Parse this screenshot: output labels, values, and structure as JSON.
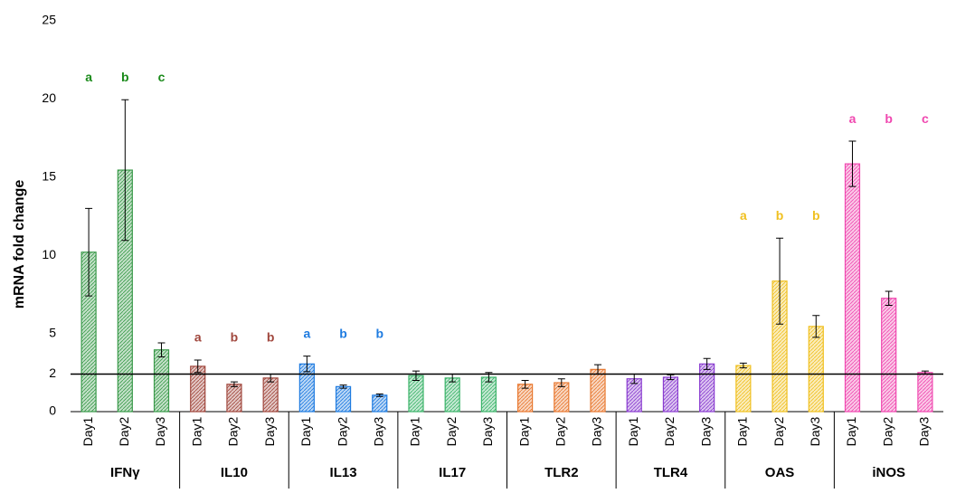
{
  "chart_data": {
    "type": "bar",
    "y_label": "mRNA fold change",
    "ylim": [
      0,
      25
    ],
    "yticks": [
      0,
      {
        "value": 2.4,
        "label": "2"
      },
      5,
      10,
      15,
      20,
      25
    ],
    "reference_line": 2.4,
    "series": [
      {
        "name": "IFNγ",
        "color": "#3a9a4a",
        "letter_color": "#1a8a1a",
        "categories": [
          "Day1",
          "Day2",
          "Day3"
        ],
        "values": [
          10.2,
          15.45,
          3.95
        ],
        "errors": [
          2.8,
          4.5,
          0.45
        ],
        "letters": [
          "a",
          "b",
          "c"
        ]
      },
      {
        "name": "IL10",
        "color": "#a0463c",
        "letter_color": "#a0463c",
        "categories": [
          "Day1",
          "Day2",
          "Day3"
        ],
        "values": [
          2.9,
          1.75,
          2.15
        ],
        "errors": [
          0.4,
          0.15,
          0.25
        ],
        "letters": [
          "a",
          "b",
          "b"
        ]
      },
      {
        "name": "IL13",
        "color": "#1e7be0",
        "letter_color": "#1e7be0",
        "categories": [
          "Day1",
          "Day2",
          "Day3"
        ],
        "values": [
          3.05,
          1.6,
          1.05
        ],
        "errors": [
          0.5,
          0.1,
          0.08
        ],
        "letters": [
          "a",
          "b",
          "b"
        ]
      },
      {
        "name": "IL17",
        "color": "#3cb46a",
        "categories": [
          "Day1",
          "Day2",
          "Day3"
        ],
        "values": [
          2.3,
          2.15,
          2.2
        ],
        "errors": [
          0.3,
          0.25,
          0.3
        ]
      },
      {
        "name": "TLR2",
        "color": "#e87830",
        "categories": [
          "Day1",
          "Day2",
          "Day3"
        ],
        "values": [
          1.75,
          1.85,
          2.7
        ],
        "errors": [
          0.25,
          0.25,
          0.3
        ]
      },
      {
        "name": "TLR4",
        "color": "#8a3cd0",
        "categories": [
          "Day1",
          "Day2",
          "Day3"
        ],
        "values": [
          2.1,
          2.2,
          3.05
        ],
        "errors": [
          0.3,
          0.15,
          0.35
        ]
      },
      {
        "name": "OAS",
        "color": "#f0c020",
        "letter_color": "#f0c020",
        "categories": [
          "Day1",
          "Day2",
          "Day3"
        ],
        "values": [
          2.95,
          8.35,
          5.45
        ],
        "errors": [
          0.15,
          2.75,
          0.7
        ],
        "letters": [
          "a",
          "b",
          "b"
        ]
      },
      {
        "name": "iNOS",
        "color": "#f048b0",
        "letter_color": "#f048b0",
        "categories": [
          "Day1",
          "Day2",
          "Day3"
        ],
        "values": [
          15.85,
          7.25,
          2.5
        ],
        "errors": [
          1.45,
          0.45,
          0.1
        ],
        "letters": [
          "a",
          "b",
          "c"
        ]
      }
    ]
  }
}
